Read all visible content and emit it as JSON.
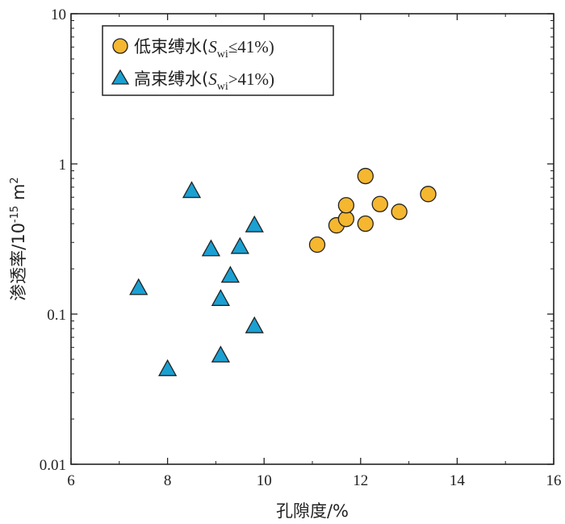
{
  "chart_data": {
    "type": "scatter",
    "title": "",
    "xlabel": "孔隙度/%",
    "ylabel": {
      "main": "渗透率/10",
      "sup": "-15",
      "unit": " m",
      "unit_sup": "2"
    },
    "xlim": [
      6,
      16
    ],
    "ylim": [
      0.01,
      10
    ],
    "yscale": "log",
    "xticks": [
      "6",
      "8",
      "10",
      "12",
      "14",
      "16"
    ],
    "yticks": [
      "0.01",
      "0.1",
      "1",
      "10"
    ],
    "legend_position": "top-left",
    "series": [
      {
        "name": "低束缚水(Swi≤41%)",
        "legend": {
          "pre": "低束缚水(",
          "S": "S",
          "sub": "wi",
          "post": "≤41%)"
        },
        "marker": "circle",
        "color": "#F5B72F",
        "points": [
          [
            11.1,
            0.29
          ],
          [
            11.5,
            0.39
          ],
          [
            11.7,
            0.43
          ],
          [
            11.7,
            0.53
          ],
          [
            12.1,
            0.4
          ],
          [
            12.1,
            0.83
          ],
          [
            12.4,
            0.54
          ],
          [
            12.8,
            0.48
          ],
          [
            13.4,
            0.63
          ]
        ]
      },
      {
        "name": "高束缚水(Swi>41%)",
        "legend": {
          "pre": "高束缚水(",
          "S": "S",
          "sub": "wi",
          "post": ">41%)"
        },
        "marker": "triangle",
        "color": "#1BA0D2",
        "points": [
          [
            8.5,
            0.66
          ],
          [
            9.8,
            0.39
          ],
          [
            9.5,
            0.28
          ],
          [
            8.9,
            0.27
          ],
          [
            9.3,
            0.18
          ],
          [
            9.1,
            0.126
          ],
          [
            7.4,
            0.149
          ],
          [
            9.8,
            0.083
          ],
          [
            9.1,
            0.053
          ],
          [
            8.0,
            0.043
          ]
        ]
      }
    ]
  }
}
